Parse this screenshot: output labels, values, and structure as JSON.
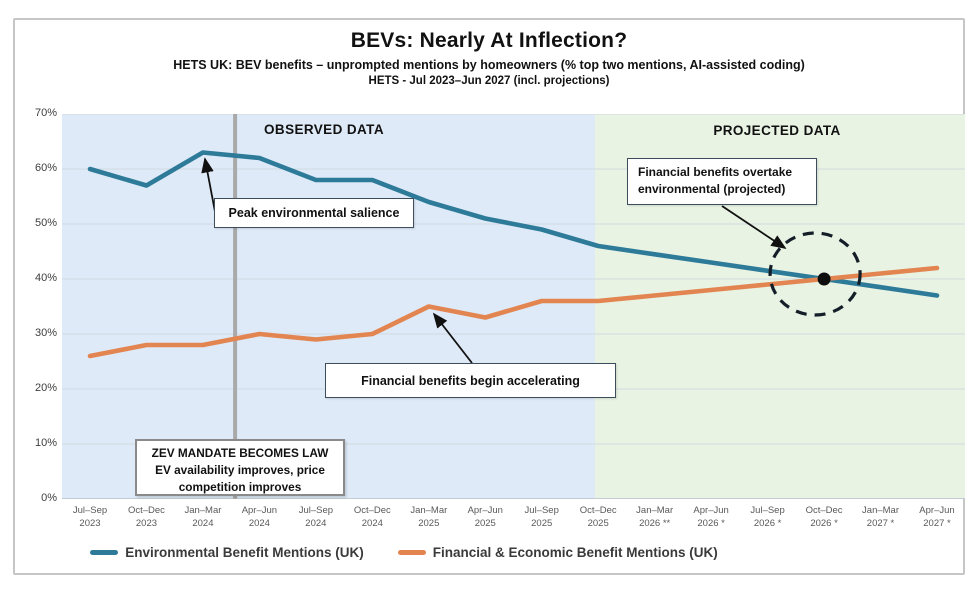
{
  "header": {
    "title": "BEVs: Nearly At Inflection?",
    "subtitle1": "HETS UK: BEV benefits – unprompted mentions by homeowners (% top two mentions, AI-assisted coding)",
    "subtitle2": "HETS - Jul 2023–Jun 2027 (incl. projections)"
  },
  "zones": {
    "observed_label": "OBSERVED DATA",
    "projected_label": "PROJECTED DATA"
  },
  "annotations": {
    "peak": "Peak environmental salience",
    "financial": "Financial benefits begin accelerating",
    "overtake_line1": "Financial benefits overtake",
    "overtake_line2": "environmental (projected)",
    "zev_line1": "ZEV MANDATE BECOMES LAW",
    "zev_line2": "EV availability improves, price",
    "zev_line3": "competition improves"
  },
  "legend": [
    {
      "label": "Environmental Benefit Mentions (UK)",
      "color": "#2E7B99"
    },
    {
      "label": "Financial & Economic Benefit Mentions (UK)",
      "color": "#E28550"
    }
  ],
  "colors": {
    "environmental_line": "#2E7B99",
    "financial_line": "#E28550",
    "observed_background": "#deeaf8",
    "projected_background": "#e8f3e4",
    "event_line": "#a9a9a9",
    "crossover_marker": "#0d0d0d"
  },
  "chart_data": {
    "type": "line",
    "title": "BEVs: Nearly At Inflection?",
    "categories": [
      "Jul–Sep 2023",
      "Oct–Dec 2023",
      "Jan–Mar 2024",
      "Apr–Jun 2024",
      "Jul–Sep 2024",
      "Oct–Dec 2024",
      "Jan–Mar 2025",
      "Apr–Jun 2025",
      "Jul–Sep 2025",
      "Oct–Dec 2025",
      "Jan–Mar 2026 **",
      "Apr–Jun 2026 *",
      "Jul–Sep 2026 *",
      "Oct–Dec 2026 *",
      "Jan–Mar 2027 *",
      "Apr–Jun 2027 *"
    ],
    "series": [
      {
        "name": "Environmental Benefit Mentions (UK)",
        "color": "#2E7B99",
        "values": [
          60,
          57,
          63,
          62,
          58,
          58,
          54,
          51,
          49,
          46,
          44.5,
          43,
          41.5,
          40,
          38.5,
          37
        ]
      },
      {
        "name": "Financial & Economic Benefit Mentions (UK)",
        "color": "#E28550",
        "values": [
          26,
          28,
          28,
          30,
          29,
          30,
          35,
          33,
          36,
          36,
          37,
          38,
          39,
          40,
          41,
          42
        ]
      }
    ],
    "ylim": [
      0,
      70
    ],
    "yticks": [
      "0%",
      "10%",
      "20%",
      "30%",
      "40%",
      "50%",
      "60%",
      "70%"
    ],
    "grid": "horizontal",
    "legend_position": "bottom",
    "observed_last_index": 9,
    "projected_first_index": 10,
    "crossover": {
      "category": "Oct–Dec 2026 *",
      "index": 13,
      "value": 40
    },
    "zev_event_position_index": 2.57
  }
}
